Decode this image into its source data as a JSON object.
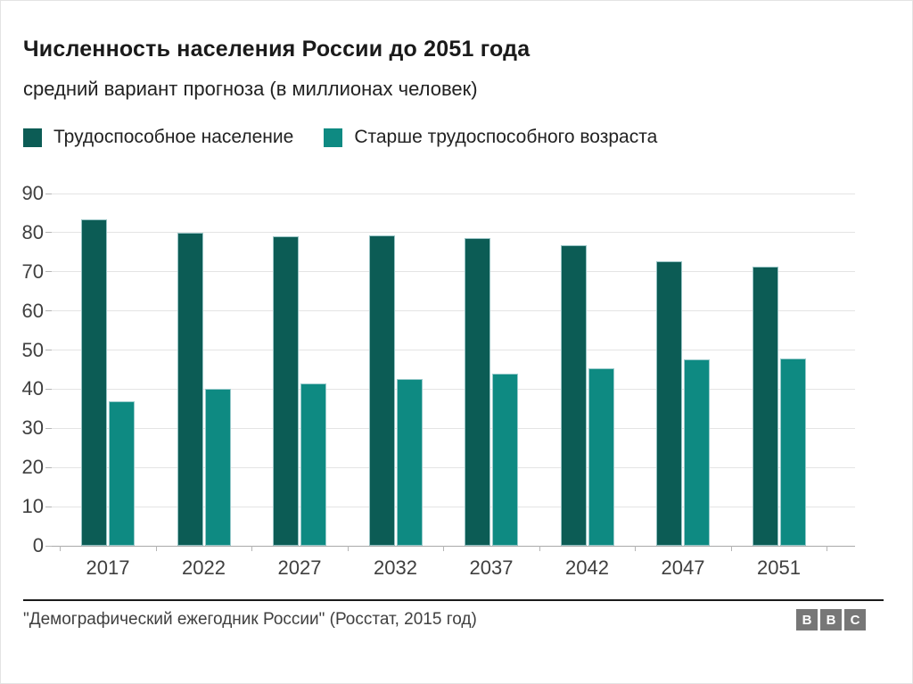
{
  "header": {
    "title": "Численность населения России до 2051 года",
    "subtitle": "средний вариант прогноза (в миллионах человек)"
  },
  "legend": [
    {
      "label": "Трудоспособное население",
      "color": "#0c5c55"
    },
    {
      "label": "Старше трудоспособного возраста",
      "color": "#0e8a82"
    }
  ],
  "chart_data": {
    "type": "bar",
    "title": "Численность населения России до 2051 года",
    "subtitle": "средний вариант прогноза (в миллионах человек)",
    "categories": [
      "2017",
      "2022",
      "2027",
      "2032",
      "2037",
      "2042",
      "2047",
      "2051"
    ],
    "series": [
      {
        "name": "Трудоспособное население",
        "color": "#0c5c55",
        "values": [
          83.3,
          80.0,
          79.0,
          79.4,
          78.6,
          76.7,
          72.8,
          71.4
        ]
      },
      {
        "name": "Старше трудоспособного возраста",
        "color": "#0e8a82",
        "values": [
          36.9,
          40.1,
          41.4,
          42.6,
          44.0,
          45.4,
          47.7,
          47.8
        ]
      }
    ],
    "xlabel": "",
    "ylabel": "",
    "ylim": [
      0,
      90
    ],
    "ytick_step": 10,
    "yticks": [
      0,
      10,
      20,
      30,
      40,
      50,
      60,
      70,
      80,
      90
    ],
    "grid": true,
    "legend_position": "top",
    "units": "миллионы человек"
  },
  "footer": {
    "source": "\"Демографический ежегодник России\" (Росстат, 2015 год)",
    "bbc_letters": [
      "B",
      "B",
      "C"
    ]
  },
  "colors": {
    "series_working": "#0c5c55",
    "series_older": "#0e8a82",
    "gridline": "#e4e4e4",
    "axis_line": "#a9a9a9",
    "text_dark": "#1a1a1a",
    "text_axis": "#3f3f3f",
    "bbc_gray": "#777777"
  }
}
